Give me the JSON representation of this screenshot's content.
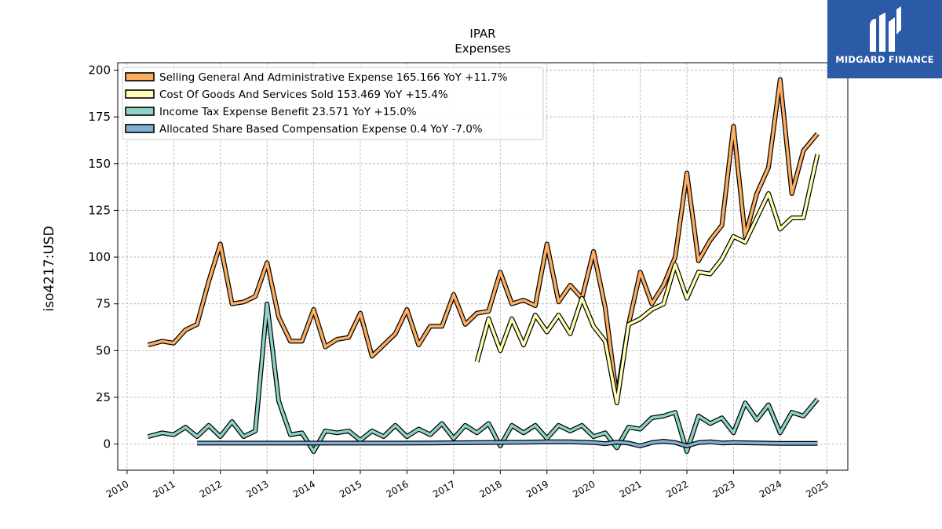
{
  "chart_data": {
    "type": "line",
    "title": "IPAR",
    "subtitle": "Expenses",
    "ylabel": "iso4217:USD",
    "xlabel": "",
    "xlim": [
      2009.8,
      2025.45
    ],
    "ylim": [
      -14,
      204
    ],
    "grid": true,
    "legend_position": "top-left",
    "x_ticks": [
      2010,
      2011,
      2012,
      2013,
      2014,
      2015,
      2016,
      2017,
      2018,
      2019,
      2020,
      2021,
      2022,
      2023,
      2024,
      2025
    ],
    "y_ticks": [
      0,
      25,
      50,
      75,
      100,
      125,
      150,
      175,
      200
    ],
    "series": [
      {
        "name": "Selling General And Administrative Expense  165.166 YoY +11.7%",
        "color": "#fdae61",
        "x": [
          2010.45,
          2010.75,
          2011.0,
          2011.25,
          2011.5,
          2011.75,
          2012.0,
          2012.25,
          2012.5,
          2012.75,
          2013.0,
          2013.25,
          2013.5,
          2013.75,
          2014.0,
          2014.25,
          2014.5,
          2014.75,
          2015.0,
          2015.25,
          2015.5,
          2015.75,
          2016.0,
          2016.25,
          2016.5,
          2016.75,
          2017.0,
          2017.25,
          2017.5,
          2017.75,
          2018.0,
          2018.25,
          2018.5,
          2018.75,
          2019.0,
          2019.25,
          2019.5,
          2019.75,
          2020.0,
          2020.25,
          2020.5,
          2020.75,
          2021.0,
          2021.25,
          2021.5,
          2021.75,
          2022.0,
          2022.25,
          2022.5,
          2022.75,
          2023.0,
          2023.25,
          2023.5,
          2023.75,
          2024.0,
          2024.25,
          2024.5,
          2024.8
        ],
        "values": [
          53,
          55,
          54,
          61,
          64,
          87,
          107,
          75,
          76,
          79,
          97,
          68,
          55,
          55,
          72,
          52,
          56,
          57,
          70,
          47,
          53,
          59,
          72,
          53,
          63,
          63,
          80,
          64,
          70,
          71,
          92,
          75,
          77,
          74,
          107,
          76,
          85,
          78,
          103,
          73,
          25,
          64,
          92,
          75,
          85,
          100,
          145,
          98,
          109,
          117,
          170,
          111,
          134,
          148,
          195,
          134,
          157,
          166
        ]
      },
      {
        "name": "Cost Of Goods And Services Sold  153.469 YoY +15.4%",
        "color": "#ffffb3",
        "x": [
          2017.5,
          2017.75,
          2018.0,
          2018.25,
          2018.5,
          2018.75,
          2019.0,
          2019.25,
          2019.5,
          2019.75,
          2020.0,
          2020.25,
          2020.5,
          2020.75,
          2021.0,
          2021.25,
          2021.5,
          2021.75,
          2022.0,
          2022.25,
          2022.5,
          2022.75,
          2023.0,
          2023.25,
          2023.5,
          2023.75,
          2024.0,
          2024.25,
          2024.5,
          2024.8
        ],
        "values": [
          44,
          67,
          50,
          67,
          53,
          69,
          60,
          69,
          59,
          78,
          63,
          55,
          22,
          64,
          67,
          72,
          75,
          96,
          78,
          92,
          91,
          99,
          111,
          108,
          121,
          134,
          115,
          121,
          121,
          155
        ]
      },
      {
        "name": "Income Tax Expense Benefit  23.571 YoY +15.0%",
        "color": "#8dd3c7",
        "x": [
          2010.45,
          2010.75,
          2011.0,
          2011.25,
          2011.5,
          2011.75,
          2012.0,
          2012.25,
          2012.5,
          2012.75,
          2013.0,
          2013.25,
          2013.5,
          2013.75,
          2014.0,
          2014.25,
          2014.5,
          2014.75,
          2015.0,
          2015.25,
          2015.5,
          2015.75,
          2016.0,
          2016.25,
          2016.5,
          2016.75,
          2017.0,
          2017.25,
          2017.5,
          2017.75,
          2018.0,
          2018.25,
          2018.5,
          2018.75,
          2019.0,
          2019.25,
          2019.5,
          2019.75,
          2020.0,
          2020.25,
          2020.5,
          2020.75,
          2021.0,
          2021.25,
          2021.5,
          2021.75,
          2022.0,
          2022.25,
          2022.5,
          2022.75,
          2023.0,
          2023.25,
          2023.5,
          2023.75,
          2024.0,
          2024.25,
          2024.5,
          2024.8
        ],
        "values": [
          4,
          6,
          5,
          9,
          4,
          10,
          4,
          12,
          4,
          7,
          75,
          23,
          5,
          6,
          -4,
          7,
          6,
          7,
          2,
          7,
          4,
          10,
          4,
          8,
          5,
          11,
          3,
          10,
          6,
          11,
          -1,
          10,
          6,
          10,
          3,
          10,
          7,
          10,
          4,
          6,
          -2,
          9,
          8,
          14,
          15,
          17,
          -4,
          15,
          11,
          14,
          6,
          22,
          13,
          21,
          6,
          17,
          15,
          24
        ]
      },
      {
        "name": "Allocated Share Based Compensation Expense  0.4 YoY -7.0%",
        "color": "#80b1d3",
        "x": [
          2011.5,
          2012.5,
          2013.5,
          2014.5,
          2015.5,
          2016.5,
          2017.5,
          2018.5,
          2019.0,
          2019.5,
          2020.0,
          2020.25,
          2020.5,
          2020.75,
          2021.0,
          2021.25,
          2021.5,
          2021.75,
          2022.0,
          2022.25,
          2022.5,
          2022.75,
          2023.0,
          2023.5,
          2024.0,
          2024.8
        ],
        "values": [
          0.5,
          0.5,
          0.5,
          0.5,
          0.5,
          0.6,
          0.8,
          1.0,
          1.2,
          1.2,
          0.8,
          0.2,
          1.0,
          0.5,
          -1.0,
          0.8,
          1.5,
          0.8,
          -1.0,
          0.8,
          1.2,
          0.6,
          0.8,
          0.6,
          0.4,
          0.4
        ]
      }
    ]
  },
  "logo": {
    "text": "MIDGARD FINANCE",
    "color": "#2b5aa7"
  }
}
